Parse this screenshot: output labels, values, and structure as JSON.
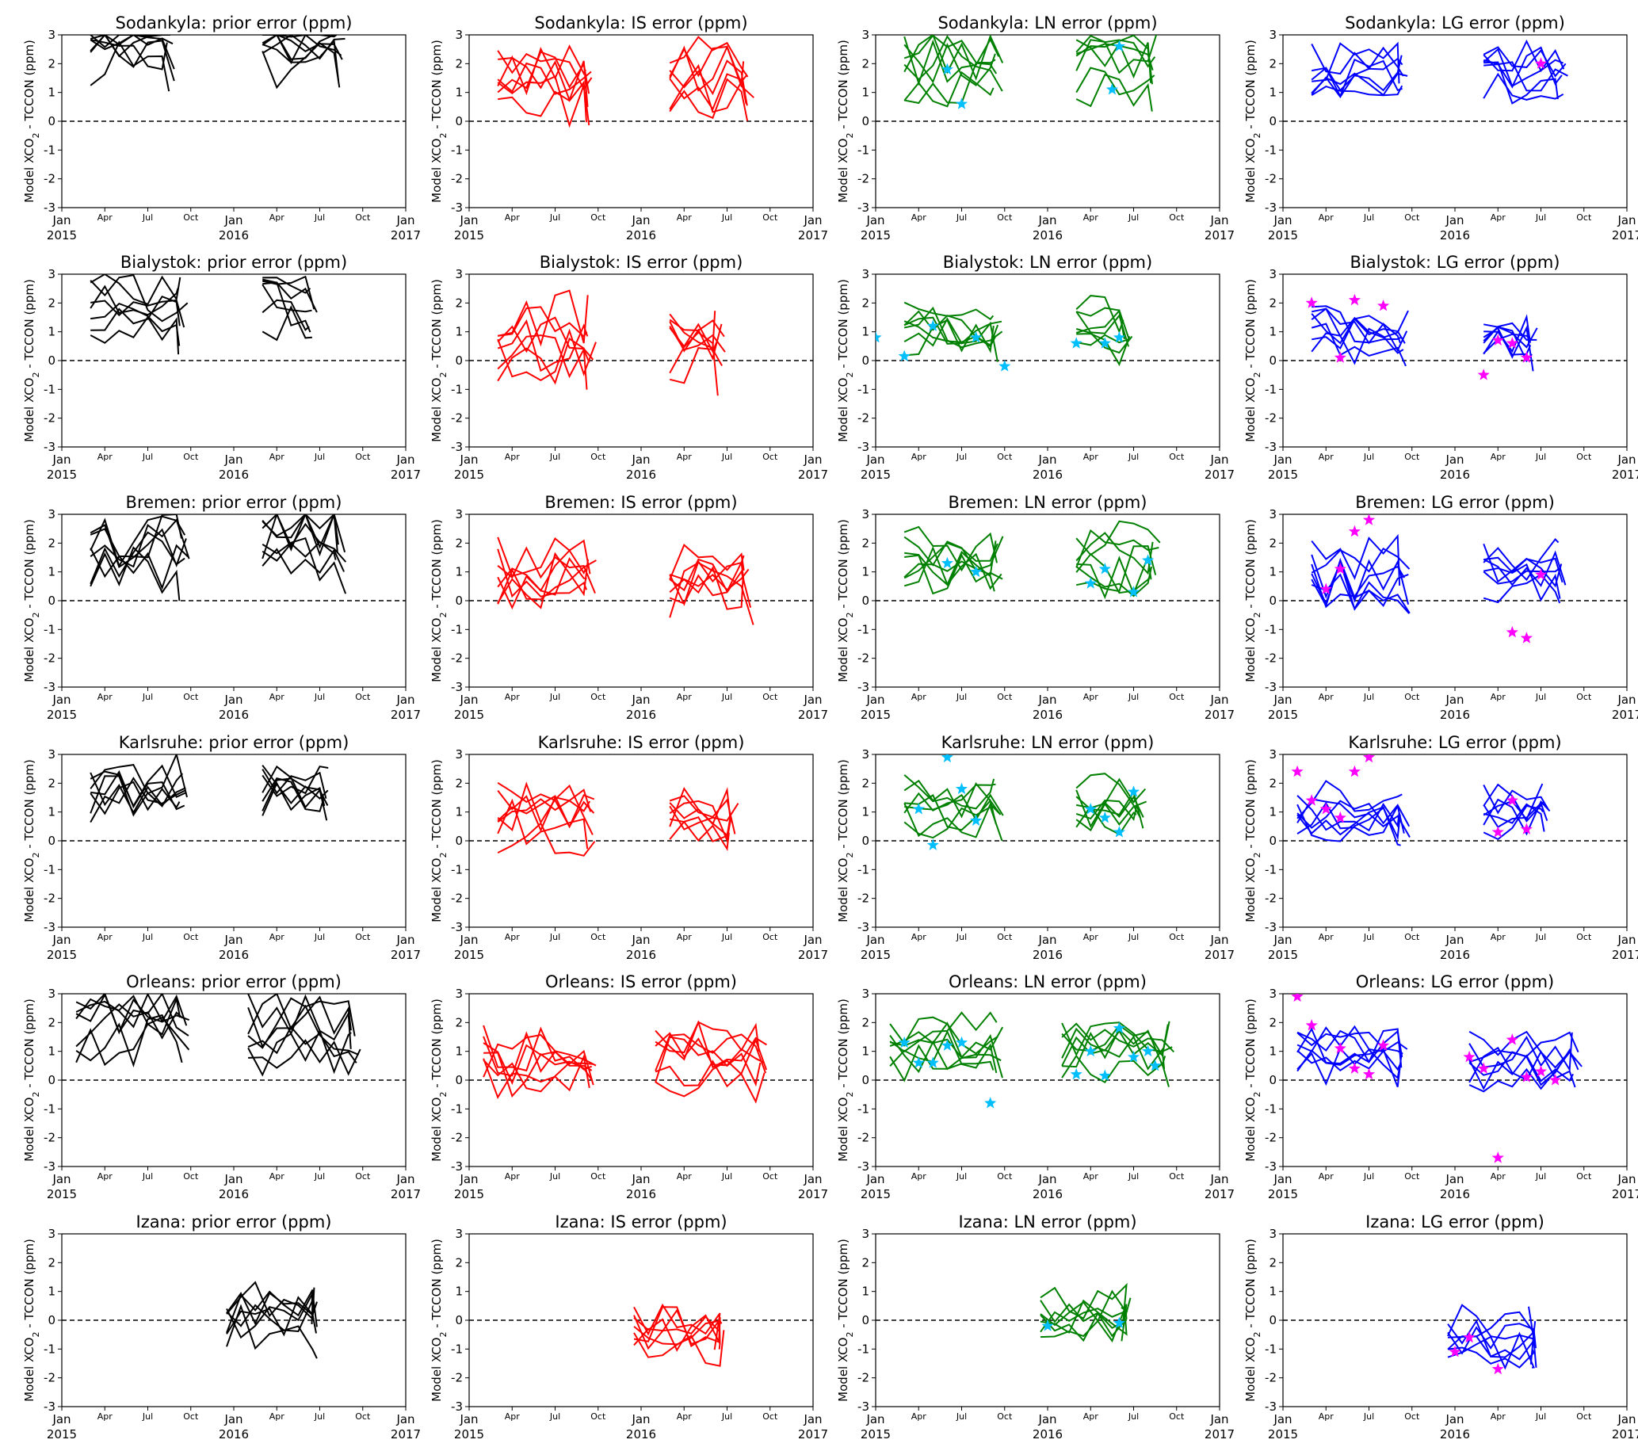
{
  "chart_data": {
    "type": "line",
    "layout": "grid 6 rows x 4 columns",
    "ylim": [
      -3,
      3
    ],
    "y_ticks": [
      "3",
      "2",
      "1",
      "0",
      "-1",
      "-2",
      "-3"
    ],
    "x_ticks": [
      "Jan",
      "Apr",
      "Jul",
      "Oct",
      "Jan",
      "Apr",
      "Jul",
      "Oct",
      "Jan"
    ],
    "x_years": [
      "2015",
      "2016",
      "2017"
    ],
    "ylabel_text": "Model XCO",
    "ylabel_sub": "2",
    "ylabel_rest": " - TCCON (ppm)",
    "colors": {
      "prior": "#000000",
      "IS": "#ff0000",
      "LN": "#008000",
      "LG": "#0000ff",
      "star_LN": "#00bfff",
      "star_LG": "#ff00ff"
    },
    "panels": [
      {
        "title": "Sodankyla: prior error (ppm)",
        "kind": "prior",
        "seg": [
          [
            2,
            7.5
          ],
          [
            14,
            19.5
          ]
        ],
        "amp": 2.6,
        "spread": 0.7,
        "seed": 11,
        "stars": []
      },
      {
        "title": "Sodankyla: IS error (ppm)",
        "kind": "IS",
        "seg": [
          [
            2,
            8.5
          ],
          [
            14,
            19.5
          ]
        ],
        "amp": 1.4,
        "spread": 0.8,
        "seed": 12,
        "stars": []
      },
      {
        "title": "Sodankyla: LN error (ppm)",
        "kind": "LN",
        "seg": [
          [
            2,
            8.5
          ],
          [
            14,
            19.5
          ]
        ],
        "amp": 1.9,
        "spread": 0.7,
        "seed": 13,
        "stars": [
          [
            5,
            1.8
          ],
          [
            6,
            0.6
          ],
          [
            16.5,
            1.1
          ],
          [
            17,
            2.6
          ]
        ]
      },
      {
        "title": "Sodankyla: LG error (ppm)",
        "kind": "LG",
        "seg": [
          [
            2,
            8.5
          ],
          [
            14,
            19.5
          ]
        ],
        "amp": 1.6,
        "spread": 0.6,
        "seed": 14,
        "stars": [
          [
            18,
            2.0
          ]
        ]
      },
      {
        "title": "Bialystok: prior error (ppm)",
        "kind": "prior",
        "seg": [
          [
            2,
            8.5
          ],
          [
            14,
            17.5
          ]
        ],
        "amp": 1.8,
        "spread": 0.7,
        "seed": 21,
        "stars": []
      },
      {
        "title": "Bialystok: IS error (ppm)",
        "kind": "IS",
        "seg": [
          [
            2,
            8.5
          ],
          [
            14,
            17.5
          ]
        ],
        "amp": 0.8,
        "spread": 0.8,
        "seed": 22,
        "stars": []
      },
      {
        "title": "Bialystok: LN error (ppm)",
        "kind": "LN",
        "seg": [
          [
            2,
            8.5
          ],
          [
            14,
            17.5
          ]
        ],
        "amp": 1.0,
        "spread": 0.6,
        "seed": 23,
        "stars": [
          [
            0,
            0.8
          ],
          [
            2,
            0.15
          ],
          [
            4,
            1.2
          ],
          [
            7,
            0.8
          ],
          [
            9,
            -0.2
          ],
          [
            14,
            0.6
          ],
          [
            16,
            0.6
          ],
          [
            17,
            0.8
          ]
        ]
      },
      {
        "title": "Bialystok: LG error (ppm)",
        "kind": "LG",
        "seg": [
          [
            2,
            8.5
          ],
          [
            14,
            17.5
          ]
        ],
        "amp": 0.9,
        "spread": 0.6,
        "seed": 24,
        "stars": [
          [
            2,
            2.0
          ],
          [
            4,
            0.1
          ],
          [
            5,
            2.1
          ],
          [
            7,
            1.9
          ],
          [
            14,
            -0.5
          ],
          [
            15,
            0.7
          ],
          [
            16,
            0.6
          ],
          [
            17,
            0.1
          ]
        ]
      },
      {
        "title": "Bremen: prior error (ppm)",
        "kind": "prior",
        "seg": [
          [
            2,
            8.5
          ],
          [
            14,
            19.5
          ]
        ],
        "amp": 1.9,
        "spread": 0.8,
        "seed": 31,
        "stars": []
      },
      {
        "title": "Bremen: IS error (ppm)",
        "kind": "IS",
        "seg": [
          [
            2,
            8.5
          ],
          [
            14,
            19.5
          ]
        ],
        "amp": 0.9,
        "spread": 0.8,
        "seed": 32,
        "stars": []
      },
      {
        "title": "Bremen: LN error (ppm)",
        "kind": "LN",
        "seg": [
          [
            2,
            8.5
          ],
          [
            14,
            19.5
          ]
        ],
        "amp": 1.3,
        "spread": 0.7,
        "seed": 33,
        "stars": [
          [
            5,
            1.3
          ],
          [
            7,
            1.0
          ],
          [
            15,
            0.6
          ],
          [
            16,
            1.1
          ],
          [
            18,
            0.3
          ],
          [
            19,
            1.4
          ]
        ]
      },
      {
        "title": "Bremen: LG error (ppm)",
        "kind": "LG",
        "seg": [
          [
            2,
            8.5
          ],
          [
            14,
            19.5
          ]
        ],
        "amp": 1.1,
        "spread": 0.7,
        "seed": 34,
        "stars": [
          [
            3,
            0.4
          ],
          [
            4,
            1.1
          ],
          [
            5,
            2.4
          ],
          [
            6,
            2.8
          ],
          [
            16,
            -1.1
          ],
          [
            17,
            -1.3
          ],
          [
            18,
            0.9
          ]
        ]
      },
      {
        "title": "Karlsruhe: prior error (ppm)",
        "kind": "prior",
        "seg": [
          [
            2,
            8.5
          ],
          [
            14,
            18.5
          ]
        ],
        "amp": 1.7,
        "spread": 0.7,
        "seed": 41,
        "stars": []
      },
      {
        "title": "Karlsruhe: IS error (ppm)",
        "kind": "IS",
        "seg": [
          [
            2,
            8.5
          ],
          [
            14,
            18.5
          ]
        ],
        "amp": 0.8,
        "spread": 0.7,
        "seed": 42,
        "stars": []
      },
      {
        "title": "Karlsruhe: LN error (ppm)",
        "kind": "LN",
        "seg": [
          [
            2,
            8.5
          ],
          [
            14,
            18.5
          ]
        ],
        "amp": 1.2,
        "spread": 0.6,
        "seed": 43,
        "stars": [
          [
            3,
            1.1
          ],
          [
            4,
            -0.15
          ],
          [
            5,
            2.9
          ],
          [
            6,
            1.8
          ],
          [
            7,
            0.7
          ],
          [
            15,
            1.1
          ],
          [
            16,
            0.8
          ],
          [
            17,
            0.3
          ],
          [
            18,
            1.7
          ]
        ]
      },
      {
        "title": "Karlsruhe: LG error (ppm)",
        "kind": "LG",
        "seg": [
          [
            1,
            8.5
          ],
          [
            14,
            18.5
          ]
        ],
        "amp": 0.9,
        "spread": 0.6,
        "seed": 44,
        "stars": [
          [
            1,
            2.4
          ],
          [
            2,
            1.4
          ],
          [
            3,
            1.1
          ],
          [
            4,
            0.8
          ],
          [
            5,
            2.4
          ],
          [
            6,
            2.9
          ],
          [
            15,
            0.3
          ],
          [
            16,
            1.4
          ],
          [
            17,
            0.4
          ]
        ]
      },
      {
        "title": "Orleans: prior error (ppm)",
        "kind": "prior",
        "seg": [
          [
            1,
            8.5
          ],
          [
            13,
            20.5
          ]
        ],
        "amp": 1.6,
        "spread": 0.8,
        "seed": 51,
        "stars": []
      },
      {
        "title": "Orleans: IS error (ppm)",
        "kind": "IS",
        "seg": [
          [
            1,
            8.5
          ],
          [
            13,
            20.5
          ]
        ],
        "amp": 0.7,
        "spread": 0.7,
        "seed": 52,
        "stars": []
      },
      {
        "title": "Orleans: LN error (ppm)",
        "kind": "LN",
        "seg": [
          [
            1,
            8.5
          ],
          [
            13,
            20.5
          ]
        ],
        "amp": 1.1,
        "spread": 0.6,
        "seed": 53,
        "stars": [
          [
            2,
            1.3
          ],
          [
            3,
            0.6
          ],
          [
            4,
            0.6
          ],
          [
            5,
            1.2
          ],
          [
            6,
            1.3
          ],
          [
            8,
            -0.8
          ],
          [
            14,
            0.2
          ],
          [
            15,
            1.0
          ],
          [
            16,
            0.15
          ],
          [
            17,
            1.8
          ],
          [
            18,
            0.8
          ],
          [
            19,
            1.0
          ],
          [
            19.5,
            0.5
          ]
        ]
      },
      {
        "title": "Orleans: LG error (ppm)",
        "kind": "LG",
        "seg": [
          [
            1,
            8.5
          ],
          [
            13,
            20.5
          ]
        ],
        "amp": 0.8,
        "spread": 0.6,
        "seed": 54,
        "stars": [
          [
            1,
            2.9
          ],
          [
            2,
            1.9
          ],
          [
            4,
            1.1
          ],
          [
            5,
            0.4
          ],
          [
            6,
            0.2
          ],
          [
            7,
            1.2
          ],
          [
            13,
            0.8
          ],
          [
            14,
            0.4
          ],
          [
            15,
            -2.7
          ],
          [
            16,
            1.4
          ],
          [
            17,
            0.1
          ],
          [
            18,
            0.3
          ],
          [
            19,
            0.0
          ]
        ]
      },
      {
        "title": "Izana: prior error (ppm)",
        "kind": "prior",
        "seg": [
          [
            11.5,
            17.5
          ]
        ],
        "amp": 0.0,
        "spread": 0.7,
        "seed": 61,
        "stars": []
      },
      {
        "title": "Izana: IS error (ppm)",
        "kind": "IS",
        "seg": [
          [
            11.5,
            17.5
          ]
        ],
        "amp": -0.4,
        "spread": 0.6,
        "seed": 62,
        "stars": []
      },
      {
        "title": "Izana: LN error (ppm)",
        "kind": "LN",
        "seg": [
          [
            11.5,
            17.5
          ]
        ],
        "amp": 0.1,
        "spread": 0.6,
        "seed": 63,
        "stars": [
          [
            12,
            -0.2
          ],
          [
            17,
            -0.1
          ]
        ]
      },
      {
        "title": "Izana: LG error (ppm)",
        "kind": "LG",
        "seg": [
          [
            11.5,
            17.5
          ]
        ],
        "amp": -0.6,
        "spread": 0.6,
        "seed": 64,
        "stars": [
          [
            12,
            -1.1
          ],
          [
            13,
            -0.6
          ],
          [
            15,
            -1.7
          ]
        ]
      }
    ]
  }
}
